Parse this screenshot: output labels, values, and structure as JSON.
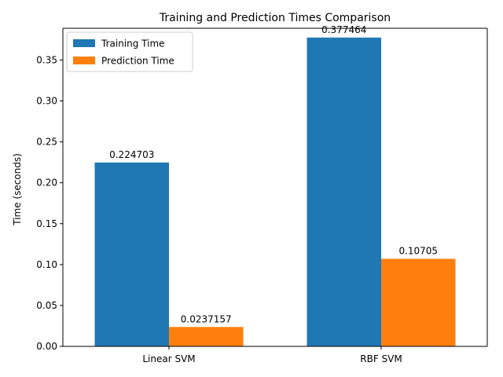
{
  "chart_data": {
    "type": "bar",
    "title": "Training and Prediction Times Comparison",
    "xlabel": "",
    "ylabel": "Time (seconds)",
    "categories": [
      "Linear SVM",
      "RBF SVM"
    ],
    "series": [
      {
        "name": "Training Time",
        "color": "#1f77b4",
        "values": [
          0.224703,
          0.377464
        ],
        "labels": [
          "0.224703",
          "0.377464"
        ]
      },
      {
        "name": "Prediction Time",
        "color": "#ff7f0e",
        "values": [
          0.0237157,
          0.10705
        ],
        "labels": [
          "0.0237157",
          "0.10705"
        ]
      }
    ],
    "ylim": [
      0,
      0.3888
    ],
    "yticks": [
      0.0,
      0.05,
      0.1,
      0.15,
      0.2,
      0.25,
      0.3,
      0.35
    ],
    "ytick_labels": [
      "0.00",
      "0.05",
      "0.10",
      "0.15",
      "0.20",
      "0.25",
      "0.30",
      "0.35"
    ],
    "legend": {
      "position": "top-left"
    },
    "grid": false
  }
}
